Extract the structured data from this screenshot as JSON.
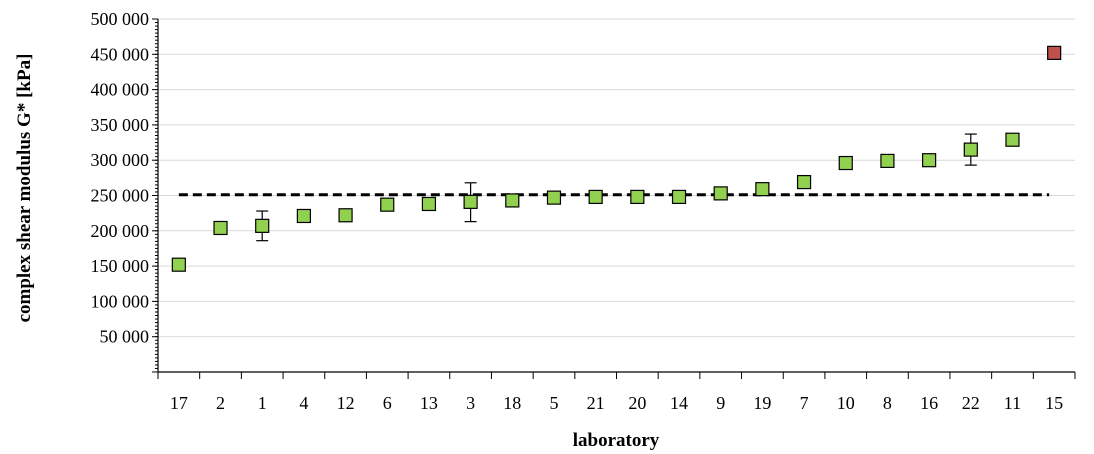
{
  "chart_data": {
    "type": "scatter",
    "title": "",
    "xlabel": "laboratory",
    "ylabel": "complex shear modulus G* [kPa]",
    "categories": [
      "17",
      "2",
      "1",
      "4",
      "12",
      "6",
      "13",
      "3",
      "18",
      "5",
      "21",
      "20",
      "14",
      "9",
      "19",
      "7",
      "10",
      "8",
      "16",
      "22",
      "11",
      "15"
    ],
    "values": [
      152000,
      204000,
      207000,
      221000,
      222000,
      237000,
      238000,
      241000,
      243000,
      247000,
      248000,
      248000,
      248000,
      253000,
      259000,
      269000,
      296000,
      299000,
      300000,
      315000,
      329000,
      452000
    ],
    "error_bars": {
      "1": [
        186000,
        228000
      ],
      "3": [
        213000,
        268000
      ],
      "22": [
        293000,
        337000
      ]
    },
    "outliers": [
      "15"
    ],
    "reference_line": 251000,
    "ylim": [
      0,
      500000
    ],
    "y_ticks": [
      0,
      50000,
      100000,
      150000,
      200000,
      250000,
      300000,
      350000,
      400000,
      450000,
      500000
    ],
    "y_tick_labels": [
      "",
      "50 000",
      "100 000",
      "150 000",
      "200 000",
      "250 000",
      "300 000",
      "350 000",
      "400 000",
      "450 000",
      "500 000"
    ],
    "grid": true,
    "legend": "none",
    "colors": {
      "marker": "#92d050",
      "outlier_marker": "#c0504d",
      "marker_edge": "#000000",
      "reference_line": "#000000",
      "grid": "#d9d9d9"
    }
  }
}
